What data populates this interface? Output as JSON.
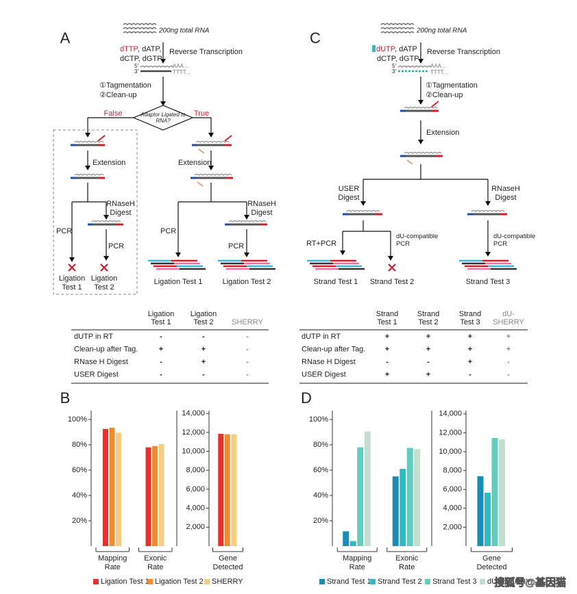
{
  "diagram_a": {
    "panel": "A",
    "input": "200ng total RNA",
    "nucleotide_marked": "dTTP",
    "nucleotides_rest": ", dATP,",
    "nucleotides_line2": "dCTP, dGTP",
    "step_rt": "Reverse Transcription",
    "end_5": "5'",
    "end_3": "3'",
    "poly_a": "AAA...",
    "poly_t": "TTTT...",
    "step_tag": "①Tagmentation",
    "step_clean": "②Clean-up",
    "decision": "Adaptor Ligated to RNA?",
    "branch_false": "False",
    "branch_true": "True",
    "false_extension": "Extension",
    "false_rnaseh": "RNaseH Digest",
    "false_pcr_left": "PCR",
    "false_pcr_right": "PCR",
    "false_result_1": "Ligation Test 1",
    "false_result_2": "Ligation Test 2",
    "true_extension": "Extension",
    "true_rnaseh": "RNaseH Digest",
    "true_pcr_left": "PCR",
    "true_pcr_right": "PCR",
    "true_result_1": "Ligation Test 1",
    "true_result_2": "Ligation Test 2"
  },
  "diagram_c": {
    "panel": "C",
    "input": "200ng total RNA",
    "nucleotide_marked": "dUTP",
    "nucleotides_rest": ", dATP",
    "nucleotides_line2": "dCTP, dGTP",
    "step_rt": "Reverse Transcription",
    "end_5": "5'",
    "end_3": "3'",
    "poly_a": "AAA...",
    "poly_t": "TTTT...",
    "step_tag": "①Tagmentation",
    "step_clean": "②Clean-up",
    "step_extension": "Extension",
    "left_digest": "USER Digest",
    "right_digest": "RNaseH Digest",
    "left_pcr": "RT+PCR",
    "middle_pcr": "dU-compatible PCR",
    "right_pcr": "dU-compatible PCR",
    "result_1": "Strand Test 1",
    "result_2": "Strand Test 2",
    "result_3": "Strand Test 3"
  },
  "table_a": {
    "columns": [
      "Ligation Test 1",
      "Ligation Test 2",
      "SHERRY"
    ],
    "column_colors": [
      "#222222",
      "#222222",
      "#888888"
    ],
    "rows": [
      [
        "dUTP in RT",
        "-",
        "-",
        "-"
      ],
      [
        "Clean-up after Tag.",
        "+",
        "+",
        "-"
      ],
      [
        "RNase H Digest",
        "-",
        "+",
        "-"
      ],
      [
        "USER Digest",
        "-",
        "-",
        "-"
      ]
    ]
  },
  "table_c": {
    "columns": [
      "Strand Test 1",
      "Strand Test 2",
      "Strand Test 3",
      "dU-SHERRY"
    ],
    "column_colors": [
      "#222222",
      "#222222",
      "#222222",
      "#888888"
    ],
    "rows": [
      [
        "dUTP in RT",
        "+",
        "+",
        "+",
        "+"
      ],
      [
        "Clean-up after Tag.",
        "+",
        "+",
        "+",
        "+"
      ],
      [
        "RNase H Digest",
        "-",
        "-",
        "+",
        "-"
      ],
      [
        "USER Digest",
        "+",
        "+",
        "-",
        "-"
      ]
    ]
  },
  "chart_data": [
    {
      "type": "bar",
      "panel": "B",
      "categories": [
        "Mapping Rate",
        "Exonic Rate"
      ],
      "series": [
        {
          "name": "Ligation Test 1",
          "color": "#e8302c",
          "values": [
            92.5,
            78
          ]
        },
        {
          "name": "Ligation Test 2",
          "color": "#f28c2a",
          "values": [
            93.5,
            79
          ]
        },
        {
          "name": "SHERRY",
          "color": "#f8cc80",
          "values": [
            89.5,
            80.5
          ]
        }
      ],
      "ylim": [
        0,
        107
      ],
      "yticks": [
        {
          "value": 20,
          "label": "20%"
        },
        {
          "value": 40,
          "label": "40%"
        },
        {
          "value": 60,
          "label": "60%"
        },
        {
          "value": 80,
          "label": "80%"
        },
        {
          "value": 100,
          "label": "100%"
        }
      ]
    },
    {
      "type": "bar",
      "categories": [
        "Gene Detected"
      ],
      "series": [
        {
          "color": "#e8302c",
          "values": [
            11850
          ]
        },
        {
          "color": "#f28c2a",
          "values": [
            11800
          ]
        },
        {
          "color": "#f8cc80",
          "values": [
            11800
          ]
        }
      ],
      "ylim": [
        0,
        14300
      ],
      "yticks": [
        {
          "value": 2000,
          "label": "2,000"
        },
        {
          "value": 4000,
          "label": "4,000"
        },
        {
          "value": 6000,
          "label": "6,000"
        },
        {
          "value": 8000,
          "label": "8,000"
        },
        {
          "value": 10000,
          "label": "10,000"
        },
        {
          "value": 12000,
          "label": "12,000"
        },
        {
          "value": 14000,
          "label": "14,000"
        }
      ]
    },
    {
      "type": "bar",
      "panel": "D",
      "categories": [
        "Mapping Rate",
        "Exonic Rate"
      ],
      "series": [
        {
          "name": "Strand Test 1",
          "color": "#1b8db5",
          "values": [
            11.7,
            55
          ]
        },
        {
          "name": "Strand Test 2",
          "color": "#2bbcc4",
          "values": [
            4,
            61
          ]
        },
        {
          "name": "Strand Test 3",
          "color": "#62cdbd",
          "values": [
            78,
            77.5
          ]
        },
        {
          "name": "dU-SHERRY",
          "color": "#c3ddcf",
          "values": [
            90.5,
            76.5
          ]
        }
      ],
      "ylim": [
        0,
        107
      ],
      "yticks": [
        {
          "value": 20,
          "label": "20%"
        },
        {
          "value": 40,
          "label": "40%"
        },
        {
          "value": 60,
          "label": "60%"
        },
        {
          "value": 80,
          "label": "80%"
        },
        {
          "value": 100,
          "label": "100%"
        }
      ]
    },
    {
      "type": "bar",
      "categories": [
        "Gene Detected"
      ],
      "series": [
        {
          "color": "#1b8db5",
          "values": [
            7400
          ]
        },
        {
          "color": "#2bbcc4",
          "values": [
            5650
          ]
        },
        {
          "color": "#62cdbd",
          "values": [
            11450
          ]
        },
        {
          "color": "#c3ddcf",
          "values": [
            11300
          ]
        }
      ],
      "ylim": [
        0,
        14350
      ],
      "yticks": [
        {
          "value": 2000,
          "label": "2,000"
        },
        {
          "value": 4000,
          "label": "4,000"
        },
        {
          "value": 6000,
          "label": "6,000"
        },
        {
          "value": 8000,
          "label": "8,000"
        },
        {
          "value": 10000,
          "label": "10,000"
        },
        {
          "value": 12000,
          "label": "12,000"
        },
        {
          "value": 14000,
          "label": "14,000"
        }
      ]
    }
  ],
  "watermark": "搜狐号@基因猫"
}
